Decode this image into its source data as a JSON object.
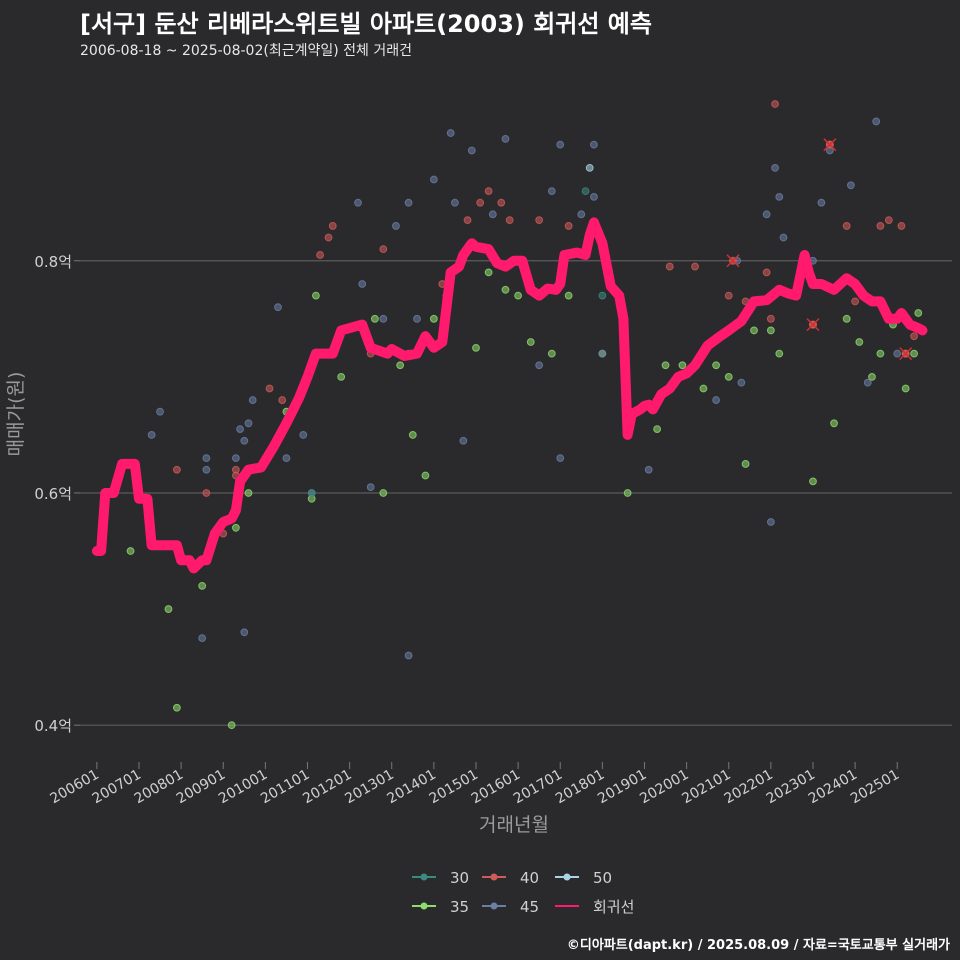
{
  "header": {
    "title": "[서구] 둔산 리베라스위트빌 아파트(2003) 회귀선 예측",
    "subtitle": "2006-08-18 ~ 2025-08-02(최근계약일) 전체 거래건"
  },
  "caption": "©디아파트(dapt.kr) / 2025.08.09 / 자료=국토교통부 실거래가",
  "colors": {
    "background": "#2a2a2c",
    "grid": "#5a5a5a",
    "text": "#d0d0d0",
    "regression": "#ff1a6e",
    "size_30": "#3a8a80",
    "size_35": "#8fdc6e",
    "size_40": "#d25a5a",
    "size_45": "#6a7ea6",
    "size_50": "#a8d4e6"
  },
  "chart_data": {
    "type": "scatter",
    "title": "[서구] 둔산 리베라스위트빌 아파트(2003) 회귀선 예측",
    "xlabel": "거래년월",
    "ylabel": "매매가(원)",
    "xlim": [
      2005.6,
      2026.3
    ],
    "ylim": [
      0.37,
      0.96
    ],
    "grid": true,
    "yticks": [
      {
        "value": 0.4,
        "label": "0.4억"
      },
      {
        "value": 0.6,
        "label": "0.6억"
      },
      {
        "value": 0.8,
        "label": "0.8억"
      }
    ],
    "xticks": [
      {
        "value": 2006.0,
        "label": "200601"
      },
      {
        "value": 2007.0,
        "label": "200701"
      },
      {
        "value": 2008.0,
        "label": "200801"
      },
      {
        "value": 2009.0,
        "label": "200901"
      },
      {
        "value": 2010.0,
        "label": "201001"
      },
      {
        "value": 2011.0,
        "label": "201101"
      },
      {
        "value": 2012.0,
        "label": "201201"
      },
      {
        "value": 2013.0,
        "label": "201301"
      },
      {
        "value": 2014.0,
        "label": "201401"
      },
      {
        "value": 2015.0,
        "label": "201501"
      },
      {
        "value": 2016.0,
        "label": "201601"
      },
      {
        "value": 2017.0,
        "label": "201701"
      },
      {
        "value": 2018.0,
        "label": "201801"
      },
      {
        "value": 2019.0,
        "label": "201901"
      },
      {
        "value": 2020.0,
        "label": "202001"
      },
      {
        "value": 2021.0,
        "label": "202101"
      },
      {
        "value": 2022.0,
        "label": "202201"
      },
      {
        "value": 2023.0,
        "label": "202301"
      },
      {
        "value": 2024.0,
        "label": "202401"
      },
      {
        "value": 2025.0,
        "label": "202501"
      }
    ],
    "legend": {
      "position": "bottom",
      "items": [
        {
          "key": "30",
          "label": "30"
        },
        {
          "key": "40",
          "label": "40"
        },
        {
          "key": "50",
          "label": "50"
        },
        {
          "key": "35",
          "label": "35"
        },
        {
          "key": "45",
          "label": "45"
        },
        {
          "key": "reg",
          "label": "회귀선"
        }
      ]
    },
    "series": [
      {
        "name": "35",
        "points": [
          [
            2006.8,
            0.55
          ],
          [
            2007.7,
            0.5
          ],
          [
            2007.9,
            0.415
          ],
          [
            2008.5,
            0.52
          ],
          [
            2009.2,
            0.4
          ],
          [
            2009.3,
            0.57
          ],
          [
            2009.6,
            0.6
          ],
          [
            2010.5,
            0.67
          ],
          [
            2011.1,
            0.595
          ],
          [
            2011.2,
            0.77
          ],
          [
            2011.8,
            0.7
          ],
          [
            2012.6,
            0.75
          ],
          [
            2012.8,
            0.6
          ],
          [
            2013.2,
            0.71
          ],
          [
            2013.5,
            0.65
          ],
          [
            2013.8,
            0.615
          ],
          [
            2014.0,
            0.75
          ],
          [
            2014.3,
            0.77
          ],
          [
            2015.0,
            0.725
          ],
          [
            2015.3,
            0.79
          ],
          [
            2015.7,
            0.775
          ],
          [
            2016.0,
            0.77
          ],
          [
            2016.3,
            0.73
          ],
          [
            2016.8,
            0.72
          ],
          [
            2017.2,
            0.77
          ],
          [
            2018.0,
            0.72
          ],
          [
            2018.6,
            0.6
          ],
          [
            2019.3,
            0.655
          ],
          [
            2019.5,
            0.71
          ],
          [
            2019.9,
            0.71
          ],
          [
            2020.4,
            0.69
          ],
          [
            2020.7,
            0.71
          ],
          [
            2021.0,
            0.7
          ],
          [
            2021.4,
            0.625
          ],
          [
            2021.6,
            0.74
          ],
          [
            2022.0,
            0.74
          ],
          [
            2022.2,
            0.72
          ],
          [
            2023.0,
            0.61
          ],
          [
            2023.5,
            0.66
          ],
          [
            2023.8,
            0.75
          ],
          [
            2024.1,
            0.73
          ],
          [
            2024.4,
            0.7
          ],
          [
            2024.6,
            0.72
          ],
          [
            2024.9,
            0.745
          ],
          [
            2025.2,
            0.69
          ],
          [
            2025.4,
            0.72
          ],
          [
            2025.5,
            0.755
          ]
        ]
      },
      {
        "name": "40",
        "points": [
          [
            2007.9,
            0.62
          ],
          [
            2008.6,
            0.6
          ],
          [
            2009.0,
            0.565
          ],
          [
            2009.3,
            0.62
          ],
          [
            2009.3,
            0.615
          ],
          [
            2010.1,
            0.69
          ],
          [
            2010.4,
            0.68
          ],
          [
            2011.3,
            0.805
          ],
          [
            2011.5,
            0.82
          ],
          [
            2011.6,
            0.83
          ],
          [
            2012.5,
            0.72
          ],
          [
            2012.8,
            0.81
          ],
          [
            2013.4,
            0.72
          ],
          [
            2014.2,
            0.78
          ],
          [
            2014.8,
            0.835
          ],
          [
            2015.1,
            0.85
          ],
          [
            2015.3,
            0.86
          ],
          [
            2015.6,
            0.85
          ],
          [
            2015.8,
            0.835
          ],
          [
            2016.5,
            0.835
          ],
          [
            2017.2,
            0.83
          ],
          [
            2019.6,
            0.795
          ],
          [
            2020.2,
            0.795
          ],
          [
            2021.0,
            0.77
          ],
          [
            2021.4,
            0.765
          ],
          [
            2021.9,
            0.79
          ],
          [
            2022.0,
            0.75
          ],
          [
            2022.1,
            0.935
          ],
          [
            2023.0,
            0.745
          ],
          [
            2023.4,
            0.9
          ],
          [
            2023.8,
            0.83
          ],
          [
            2024.0,
            0.765
          ],
          [
            2024.6,
            0.83
          ],
          [
            2024.8,
            0.835
          ],
          [
            2025.1,
            0.83
          ],
          [
            2025.2,
            0.72
          ],
          [
            2025.4,
            0.735
          ]
        ]
      },
      {
        "name": "45",
        "points": [
          [
            2007.3,
            0.65
          ],
          [
            2007.5,
            0.67
          ],
          [
            2008.5,
            0.475
          ],
          [
            2008.6,
            0.63
          ],
          [
            2008.6,
            0.62
          ],
          [
            2009.3,
            0.63
          ],
          [
            2009.4,
            0.655
          ],
          [
            2009.5,
            0.645
          ],
          [
            2009.6,
            0.66
          ],
          [
            2009.5,
            0.48
          ],
          [
            2009.7,
            0.68
          ],
          [
            2010.3,
            0.76
          ],
          [
            2010.5,
            0.63
          ],
          [
            2010.9,
            0.65
          ],
          [
            2011.1,
            0.6
          ],
          [
            2012.2,
            0.85
          ],
          [
            2012.3,
            0.78
          ],
          [
            2012.5,
            0.605
          ],
          [
            2012.8,
            0.75
          ],
          [
            2013.1,
            0.83
          ],
          [
            2013.4,
            0.85
          ],
          [
            2013.4,
            0.46
          ],
          [
            2013.6,
            0.75
          ],
          [
            2014.0,
            0.87
          ],
          [
            2014.4,
            0.91
          ],
          [
            2014.5,
            0.85
          ],
          [
            2014.7,
            0.645
          ],
          [
            2014.9,
            0.895
          ],
          [
            2015.4,
            0.84
          ],
          [
            2015.7,
            0.905
          ],
          [
            2016.5,
            0.71
          ],
          [
            2016.8,
            0.86
          ],
          [
            2017.0,
            0.9
          ],
          [
            2017.0,
            0.63
          ],
          [
            2017.5,
            0.84
          ],
          [
            2017.8,
            0.855
          ],
          [
            2017.8,
            0.9
          ],
          [
            2018.0,
            0.72
          ],
          [
            2019.1,
            0.62
          ],
          [
            2020.7,
            0.68
          ],
          [
            2021.2,
            0.8
          ],
          [
            2021.3,
            0.695
          ],
          [
            2021.9,
            0.84
          ],
          [
            2022.0,
            0.575
          ],
          [
            2022.1,
            0.88
          ],
          [
            2022.2,
            0.855
          ],
          [
            2022.3,
            0.82
          ],
          [
            2023.0,
            0.8
          ],
          [
            2023.2,
            0.85
          ],
          [
            2023.4,
            0.895
          ],
          [
            2023.9,
            0.865
          ],
          [
            2024.3,
            0.695
          ],
          [
            2024.5,
            0.92
          ],
          [
            2025.0,
            0.72
          ]
        ]
      },
      {
        "name": "50",
        "points": [
          [
            2017.7,
            0.88
          ]
        ]
      },
      {
        "name": "30",
        "points": [
          [
            2011.1,
            0.6
          ],
          [
            2017.6,
            0.86
          ],
          [
            2018.0,
            0.77
          ]
        ]
      }
    ],
    "regression": {
      "name": "회귀선",
      "points": [
        [
          2006.0,
          0.55
        ],
        [
          2006.1,
          0.55
        ],
        [
          2006.2,
          0.6
        ],
        [
          2006.4,
          0.6
        ],
        [
          2006.6,
          0.625
        ],
        [
          2006.9,
          0.625
        ],
        [
          2007.0,
          0.595
        ],
        [
          2007.2,
          0.595
        ],
        [
          2007.3,
          0.555
        ],
        [
          2007.9,
          0.555
        ],
        [
          2008.0,
          0.542
        ],
        [
          2008.2,
          0.542
        ],
        [
          2008.3,
          0.535
        ],
        [
          2008.5,
          0.542
        ],
        [
          2008.6,
          0.542
        ],
        [
          2008.8,
          0.565
        ],
        [
          2009.0,
          0.575
        ],
        [
          2009.2,
          0.578
        ],
        [
          2009.3,
          0.585
        ],
        [
          2009.4,
          0.61
        ],
        [
          2009.6,
          0.62
        ],
        [
          2009.9,
          0.622
        ],
        [
          2010.2,
          0.64
        ],
        [
          2010.5,
          0.66
        ],
        [
          2010.8,
          0.682
        ],
        [
          2011.0,
          0.7
        ],
        [
          2011.2,
          0.72
        ],
        [
          2011.6,
          0.72
        ],
        [
          2011.8,
          0.74
        ],
        [
          2012.3,
          0.745
        ],
        [
          2012.5,
          0.725
        ],
        [
          2012.9,
          0.72
        ],
        [
          2013.0,
          0.724
        ],
        [
          2013.3,
          0.718
        ],
        [
          2013.6,
          0.72
        ],
        [
          2013.8,
          0.735
        ],
        [
          2014.0,
          0.725
        ],
        [
          2014.2,
          0.73
        ],
        [
          2014.4,
          0.79
        ],
        [
          2014.6,
          0.795
        ],
        [
          2014.7,
          0.805
        ],
        [
          2014.9,
          0.815
        ],
        [
          2015.0,
          0.812
        ],
        [
          2015.3,
          0.81
        ],
        [
          2015.5,
          0.798
        ],
        [
          2015.7,
          0.795
        ],
        [
          2015.9,
          0.8
        ],
        [
          2016.1,
          0.8
        ],
        [
          2016.3,
          0.775
        ],
        [
          2016.5,
          0.77
        ],
        [
          2016.7,
          0.776
        ],
        [
          2016.9,
          0.775
        ],
        [
          2017.0,
          0.78
        ],
        [
          2017.1,
          0.805
        ],
        [
          2017.4,
          0.807
        ],
        [
          2017.6,
          0.805
        ],
        [
          2017.7,
          0.822
        ],
        [
          2017.8,
          0.833
        ],
        [
          2018.0,
          0.815
        ],
        [
          2018.2,
          0.778
        ],
        [
          2018.4,
          0.77
        ],
        [
          2018.5,
          0.75
        ],
        [
          2018.6,
          0.65
        ],
        [
          2018.7,
          0.668
        ],
        [
          2018.9,
          0.672
        ],
        [
          2019.0,
          0.675
        ],
        [
          2019.1,
          0.676
        ],
        [
          2019.2,
          0.672
        ],
        [
          2019.4,
          0.685
        ],
        [
          2019.6,
          0.69
        ],
        [
          2019.8,
          0.7
        ],
        [
          2020.0,
          0.703
        ],
        [
          2020.2,
          0.71
        ],
        [
          2020.5,
          0.727
        ],
        [
          2020.8,
          0.735
        ],
        [
          2021.0,
          0.74
        ],
        [
          2021.3,
          0.748
        ],
        [
          2021.6,
          0.765
        ],
        [
          2021.9,
          0.766
        ],
        [
          2022.2,
          0.775
        ],
        [
          2022.4,
          0.772
        ],
        [
          2022.6,
          0.77
        ],
        [
          2022.8,
          0.805
        ],
        [
          2022.9,
          0.79
        ],
        [
          2023.0,
          0.78
        ],
        [
          2023.2,
          0.78
        ],
        [
          2023.5,
          0.775
        ],
        [
          2023.8,
          0.785
        ],
        [
          2024.0,
          0.78
        ],
        [
          2024.2,
          0.77
        ],
        [
          2024.4,
          0.765
        ],
        [
          2024.6,
          0.765
        ],
        [
          2024.8,
          0.75
        ],
        [
          2025.0,
          0.75
        ],
        [
          2025.1,
          0.755
        ],
        [
          2025.3,
          0.745
        ],
        [
          2025.5,
          0.742
        ],
        [
          2025.6,
          0.74
        ]
      ]
    },
    "outliers": [
      [
        2021.1,
        0.8
      ],
      [
        2023.0,
        0.745
      ],
      [
        2023.4,
        0.9
      ],
      [
        2025.2,
        0.72
      ]
    ]
  }
}
